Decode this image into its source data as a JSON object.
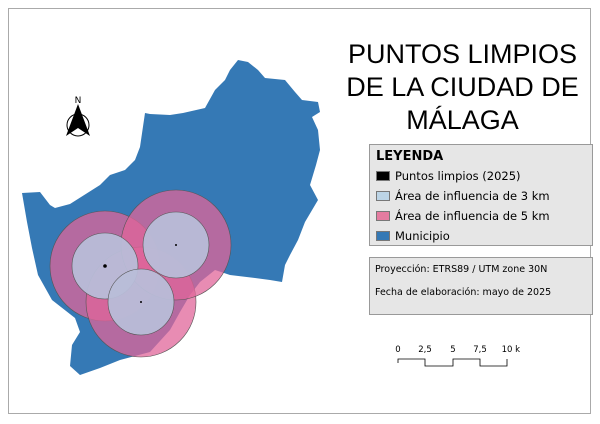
{
  "title": {
    "line1": "PUNTOS LIMPIOS",
    "line2": "DE LA CIUDAD DE",
    "line3": "MÁLAGA"
  },
  "north_arrow": {
    "label": "N"
  },
  "legend": {
    "heading": "LEYENDA",
    "items": [
      {
        "label": "Puntos limpios (2025)",
        "color": "#000000"
      },
      {
        "label": "Área de influencia de 3 km",
        "color": "#bcd4e6"
      },
      {
        "label": "Área de influencia de 5 km",
        "color": "#e47ca0"
      },
      {
        "label": "Municipio",
        "color": "#3579b5"
      }
    ]
  },
  "info": {
    "projection": "Proyección: ETRS89 / UTM zone 30N",
    "date": "Fecha de elaboración: mayo de 2025"
  },
  "scale_bar": {
    "ticks": [
      "0",
      "2,5",
      "5",
      "7,5",
      "10 km"
    ]
  }
}
